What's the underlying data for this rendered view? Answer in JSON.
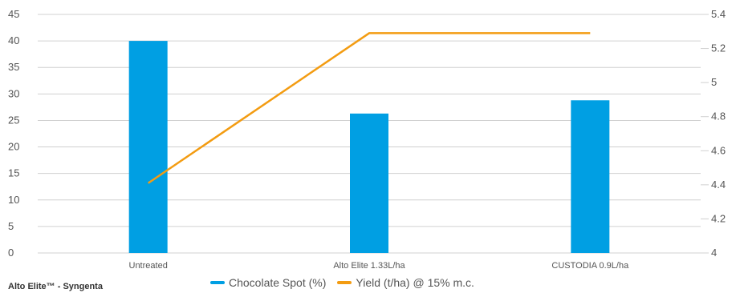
{
  "chart_data": {
    "type": "bar",
    "categories": [
      "Untreated",
      "Alto Elite 1.33L/ha",
      "CUSTODIA 0.9L/ha"
    ],
    "series": [
      {
        "name": "Chocolate Spot (%)",
        "type": "bar",
        "axis": "left",
        "color": "#009fe3",
        "values": [
          40,
          26.3,
          28.8
        ]
      },
      {
        "name": "Yield (t/ha) @ 15% m.c.",
        "type": "line",
        "axis": "right",
        "color": "#f39c12",
        "values": [
          4.41,
          5.29,
          5.29
        ]
      }
    ],
    "y_left": {
      "min": 0,
      "max": 45,
      "ticks": [
        "0",
        "5",
        "10",
        "15",
        "20",
        "25",
        "30",
        "35",
        "40",
        "45"
      ]
    },
    "y_right": {
      "min": 4,
      "max": 5.4,
      "ticks": [
        "4",
        "4.2",
        "4.4",
        "4.6",
        "4.8",
        "5",
        "5.2",
        "5.4"
      ]
    },
    "grid": true,
    "legend_position": "bottom"
  },
  "source_label": "Alto Elite™ - Syngenta"
}
